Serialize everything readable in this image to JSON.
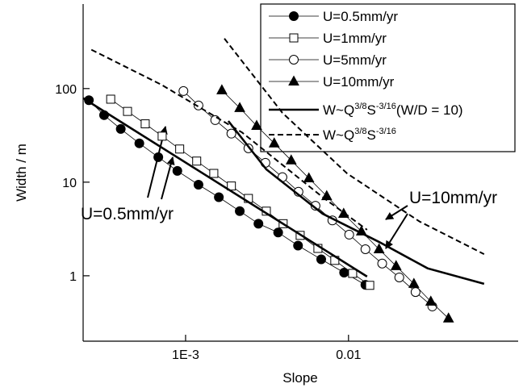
{
  "chart_data": {
    "type": "line",
    "x_label": "Slope",
    "y_label": "Width / m",
    "log_x": true,
    "log_y": true,
    "xlim": [
      0.000235,
      0.11
    ],
    "ylim": [
      0.2,
      800
    ],
    "xticks": [
      {
        "value": 0.001,
        "label": "1E-3"
      },
      0.01
    ],
    "yticks": [
      1,
      10,
      100
    ],
    "legend": "upper right",
    "series": [
      {
        "name": [
          "U=0.5mm/yr"
        ],
        "color": "#000000",
        "marker": "circle-filled",
        "line": "thin",
        "x": [
          0.000255,
          0.000316,
          0.0004,
          0.00052,
          0.00068,
          0.00089,
          0.0012,
          0.0016,
          0.00215,
          0.0028,
          0.0037,
          0.0049,
          0.0068,
          0.0094,
          0.0127
        ],
        "values": [
          75,
          52,
          37,
          26,
          18.5,
          13.2,
          9.4,
          6.9,
          4.9,
          3.6,
          2.9,
          2.1,
          1.5,
          1.08,
          0.8
        ]
      },
      {
        "name": [
          "U=1mm/yr"
        ],
        "color": "#000000",
        "marker": "square-open",
        "line": "thin",
        "x": [
          0.000347,
          0.00044,
          0.000565,
          0.000718,
          0.00092,
          0.00117,
          0.00149,
          0.00191,
          0.00243,
          0.00313,
          0.00397,
          0.00505,
          0.00649,
          0.00824,
          0.0106,
          0.0135
        ],
        "values": [
          77,
          57,
          42,
          31,
          22.6,
          16.8,
          12.4,
          9.1,
          6.7,
          4.9,
          3.6,
          2.7,
          1.96,
          1.46,
          1.06,
          0.79
        ]
      },
      {
        "name": [
          "U=5mm/yr"
        ],
        "color": "#000000",
        "marker": "circle-open",
        "line": "thin",
        "x": [
          0.00097,
          0.0012,
          0.00152,
          0.00191,
          0.00243,
          0.00309,
          0.00393,
          0.00493,
          0.00627,
          0.00796,
          0.0101,
          0.0127,
          0.0161,
          0.0205,
          0.0258,
          0.0327
        ],
        "values": [
          94,
          66,
          46,
          33,
          23,
          16.1,
          11.3,
          7.9,
          5.6,
          3.9,
          2.75,
          1.92,
          1.35,
          0.96,
          0.67,
          0.47
        ]
      },
      {
        "name": [
          "U=10mm/yr"
        ],
        "color": "#000000",
        "marker": "triangle-filled",
        "line": "thin",
        "x": [
          0.00167,
          0.00215,
          0.00273,
          0.0035,
          0.00445,
          0.00571,
          0.00735,
          0.00934,
          0.012,
          0.0154,
          0.0196,
          0.0252,
          0.032,
          0.0411
        ],
        "values": [
          96,
          62,
          40,
          26,
          17.1,
          11,
          7.1,
          4.6,
          2.98,
          1.92,
          1.27,
          0.82,
          0.53,
          0.35
        ]
      },
      {
        "name": [
          "W~Q",
          "3/8",
          "S",
          "-3/16",
          "(W/D = 10)"
        ],
        "color": "#000000",
        "marker": "none",
        "line": "thick",
        "x": [
          0.000235,
          0.013,
          null,
          0.00183,
          0.00313,
          0.00694,
          0.0154,
          0.0306,
          0.068
        ],
        "values": [
          79,
          0.98,
          null,
          45,
          13.7,
          4.6,
          2.3,
          1.2,
          0.82
        ]
      },
      {
        "name": [
          "W~Q",
          "3/8",
          "S",
          "-3/16"
        ],
        "color": "#000000",
        "marker": "none",
        "line": "dashed",
        "x": [
          0.000264,
          0.00071,
          0.00222,
          0.00694,
          0.013,
          null,
          0.00173,
          0.00393,
          0.0098,
          0.0273,
          0.068
        ],
        "values": [
          260,
          110,
          34,
          6.9,
          3.1,
          null,
          342,
          55,
          12.4,
          3.8,
          1.7
        ]
      }
    ],
    "annotations": [
      "U=0.5mm/yr",
      "U=10mm/yr"
    ]
  }
}
